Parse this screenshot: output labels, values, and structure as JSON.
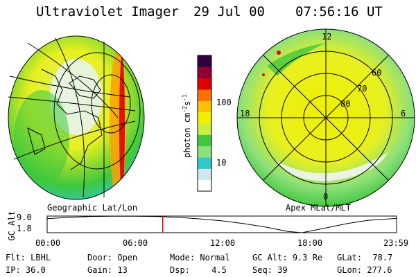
{
  "header": {
    "instrument": "Ultraviolet Imager",
    "date": "29 Jul 00",
    "time": "07:56:16 UT"
  },
  "left_panel": {
    "caption": "Geographic Lat/Lon"
  },
  "right_panel": {
    "caption": "Apex MLat/MLT",
    "mlt_labels": {
      "top": "12",
      "left": "18",
      "right": "6",
      "bottom": "0"
    },
    "lat_labels": [
      "60",
      "70",
      "80"
    ]
  },
  "colorbar": {
    "unit_label": "photon cm",
    "unit_sup1": "-2",
    "unit_mid": "s",
    "unit_sup2": "-1",
    "ticks": [
      "100",
      "10"
    ],
    "colors": [
      "#ffffff",
      "#cfe8ee",
      "#30c8c8",
      "#8ee07a",
      "#3ec83e",
      "#c8f040",
      "#f0f000",
      "#ffc000",
      "#ff7000",
      "#e00000",
      "#900030",
      "#300040"
    ]
  },
  "altitude_plot": {
    "ylabel": "GC Alt",
    "yticks": [
      "9.0",
      "1.8"
    ],
    "xticks": [
      "00:00",
      "06:00",
      "12:00",
      "18:00",
      "23:59"
    ],
    "current_time_hours": 7.94,
    "profile_hours": [
      0,
      1.5,
      3,
      4.5,
      6,
      7.5,
      9,
      10.5,
      12,
      13.5,
      15,
      16.5,
      17.5,
      19,
      20.5,
      22,
      23.98
    ],
    "profile_alt_re": [
      8.3,
      8.9,
      9.3,
      9.45,
      9.4,
      9.3,
      8.9,
      8.2,
      7.3,
      6.0,
      4.4,
      2.4,
      1.8,
      3.8,
      5.9,
      7.5,
      8.4
    ],
    "ylim": [
      1.8,
      9.5
    ],
    "marker_color": "#e00000"
  },
  "info": {
    "row1": [
      {
        "label": "Flt:",
        "value": "LBHL"
      },
      {
        "label": "Door:",
        "value": "Open"
      },
      {
        "label": "Mode:",
        "value": "Normal"
      },
      {
        "label": "GC Alt:",
        "value": "9.3 Re"
      },
      {
        "label": "GLat:",
        "value": "78.7"
      }
    ],
    "row2": [
      {
        "label": "IP:",
        "value": "36.0"
      },
      {
        "label": "Gain:",
        "value": "13"
      },
      {
        "label": "Dsp:",
        "value": "4.5"
      },
      {
        "label": "Seq:",
        "value": "39"
      },
      {
        "label": "GLon:",
        "value": "277.6"
      }
    ]
  }
}
